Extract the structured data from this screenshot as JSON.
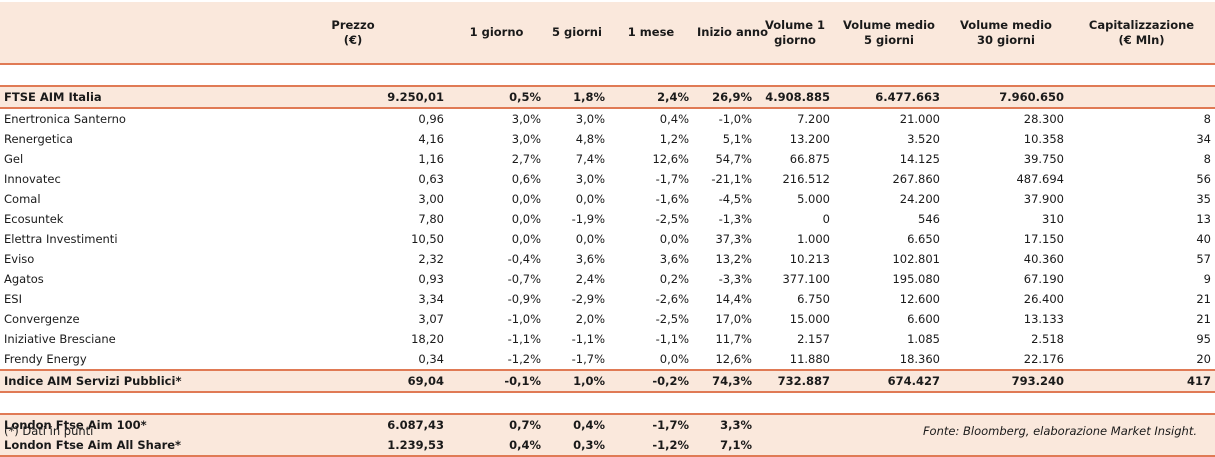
{
  "header": [
    [
      "",
      ""
    ],
    [
      "Prezzo",
      "(€)"
    ],
    [
      "1 giorno",
      ""
    ],
    [
      "5 giorni",
      ""
    ],
    [
      "1 mese",
      ""
    ],
    [
      "Inizio anno",
      ""
    ],
    [
      "Volume 1",
      "giorno"
    ],
    [
      "Volume medio",
      "5 giorni"
    ],
    [
      "Volume medio",
      "30 giorni"
    ],
    [
      "Capitalizzazione",
      "(€ Mln)"
    ]
  ],
  "index_top": [
    "FTSE AIM Italia",
    "9.250,01",
    "0,5%",
    "1,8%",
    "2,4%",
    "26,9%",
    "4.908.885",
    "6.477.663",
    "7.960.650",
    ""
  ],
  "rows": [
    [
      "Enertronica Santerno",
      "0,96",
      "3,0%",
      "3,0%",
      "0,4%",
      "-1,0%",
      "7.200",
      "21.000",
      "28.300",
      "8"
    ],
    [
      "Renergetica",
      "4,16",
      "3,0%",
      "4,8%",
      "1,2%",
      "5,1%",
      "13.200",
      "3.520",
      "10.358",
      "34"
    ],
    [
      "Gel",
      "1,16",
      "2,7%",
      "7,4%",
      "12,6%",
      "54,7%",
      "66.875",
      "14.125",
      "39.750",
      "8"
    ],
    [
      "Innovatec",
      "0,63",
      "0,6%",
      "3,0%",
      "-1,7%",
      "-21,1%",
      "216.512",
      "267.860",
      "487.694",
      "56"
    ],
    [
      "Comal",
      "3,00",
      "0,0%",
      "0,0%",
      "-1,6%",
      "-4,5%",
      "5.000",
      "24.200",
      "37.900",
      "35"
    ],
    [
      "Ecosuntek",
      "7,80",
      "0,0%",
      "-1,9%",
      "-2,5%",
      "-1,3%",
      "0",
      "546",
      "310",
      "13"
    ],
    [
      "Elettra Investimenti",
      "10,50",
      "0,0%",
      "0,0%",
      "0,0%",
      "37,3%",
      "1.000",
      "6.650",
      "17.150",
      "40"
    ],
    [
      "Eviso",
      "2,32",
      "-0,4%",
      "3,6%",
      "3,6%",
      "13,2%",
      "10.213",
      "102.801",
      "40.360",
      "57"
    ],
    [
      "Agatos",
      "0,93",
      "-0,7%",
      "2,4%",
      "0,2%",
      "-3,3%",
      "377.100",
      "195.080",
      "67.190",
      "9"
    ],
    [
      "ESI",
      "3,34",
      "-0,9%",
      "-2,9%",
      "-2,6%",
      "14,4%",
      "6.750",
      "12.600",
      "26.400",
      "21"
    ],
    [
      "Convergenze",
      "3,07",
      "-1,0%",
      "2,0%",
      "-2,5%",
      "17,0%",
      "15.000",
      "6.600",
      "13.133",
      "21"
    ],
    [
      "Iniziative Bresciane",
      "18,20",
      "-1,1%",
      "-1,1%",
      "-1,1%",
      "11,7%",
      "2.157",
      "1.085",
      "2.518",
      "95"
    ],
    [
      "Frendy Energy",
      "0,34",
      "-1,2%",
      "-1,7%",
      "0,0%",
      "12,6%",
      "11.880",
      "18.360",
      "22.176",
      "20"
    ]
  ],
  "index_mid": [
    "Indice AIM Servizi Pubblici*",
    "69,04",
    "-0,1%",
    "1,0%",
    "-0,2%",
    "74,3%",
    "732.887",
    "674.427",
    "793.240",
    "417"
  ],
  "index_bottom": [
    [
      "London Ftse Aim 100*",
      "6.087,43",
      "0,7%",
      "0,4%",
      "-1,7%",
      "3,3%",
      "",
      "",
      "",
      ""
    ],
    [
      "London Ftse Aim All Share*",
      "1.239,53",
      "0,4%",
      "0,3%",
      "-1,2%",
      "7,1%",
      "",
      "",
      "",
      ""
    ]
  ],
  "footnote": "(*) Dati in punti",
  "source": "Fonte: Bloomberg, elaborazione Market Insight."
}
